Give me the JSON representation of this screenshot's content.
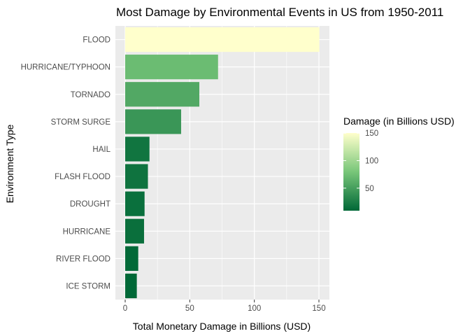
{
  "chart_data": {
    "type": "bar",
    "orientation": "horizontal",
    "title": "Most Damage by Environmental Events in US from 1950-2011",
    "xlabel": "Total Monetary Damage in Billions (USD)",
    "ylabel": "Environment Type",
    "xlim": [
      0,
      155
    ],
    "x_ticks": [
      0,
      50,
      100,
      150
    ],
    "grid": true,
    "categories": [
      "FLOOD",
      "HURRICANE/TYPHOON",
      "TORNADO",
      "STORM SURGE",
      "HAIL",
      "FLASH FLOOD",
      "DROUGHT",
      "HURRICANE",
      "RIVER FLOOD",
      "ICE STORM"
    ],
    "values": [
      150.3,
      71.9,
      57.4,
      43.3,
      18.8,
      17.6,
      15.0,
      14.6,
      10.1,
      9.0
    ],
    "legend": {
      "title": "Damage (in Billions USD)",
      "placement": "right",
      "ticks": [
        50,
        100,
        150
      ],
      "min": 9.0,
      "max": 150.3,
      "color_low": "#006837",
      "color_mid": "#78c679",
      "color_high": "#ffffcc"
    },
    "panel_background": "#ebebeb",
    "grid_color": "#ffffff"
  }
}
